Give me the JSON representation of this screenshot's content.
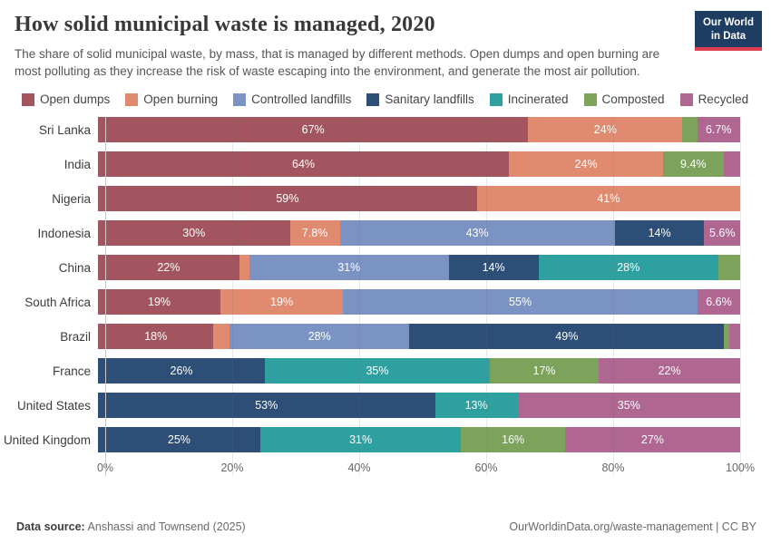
{
  "header": {
    "title": "How solid municipal waste is managed, 2020",
    "subtitle": "The share of solid municipal waste, by mass, that is managed by different methods. Open dumps and open burning are most polluting as they increase the risk of waste escaping into the environment, and generate the most air pollution.",
    "logo_line1": "Our World",
    "logo_line2": "in Data"
  },
  "brand_colors": {
    "logo_navy": "#1d3d63",
    "logo_red": "#dc3e50"
  },
  "chart_data": {
    "type": "bar",
    "stacked": true,
    "orientation": "horizontal",
    "unit": "%",
    "xlim": [
      0,
      100
    ],
    "x_ticks": [
      "0%",
      "20%",
      "40%",
      "60%",
      "80%",
      "100%"
    ],
    "grid": true,
    "legend_position": "top",
    "label_visibility_threshold": 5,
    "categories": [
      "Sri Lanka",
      "India",
      "Nigeria",
      "Indonesia",
      "China",
      "South Africa",
      "Brazil",
      "France",
      "United States",
      "United Kingdom"
    ],
    "series": [
      {
        "name": "Open dumps",
        "color": "#a2555e",
        "values": [
          67,
          64,
          59,
          30,
          22,
          19,
          18,
          0,
          0,
          0
        ]
      },
      {
        "name": "Open burning",
        "color": "#e08b70",
        "values": [
          24,
          24,
          41,
          7.8,
          1.6,
          19,
          2.5,
          0,
          0,
          0
        ]
      },
      {
        "name": "Controlled landfills",
        "color": "#7b93c2",
        "values": [
          0,
          0,
          0,
          43,
          31,
          55,
          28,
          0,
          0,
          0
        ]
      },
      {
        "name": "Sanitary landfills",
        "color": "#2d4e77",
        "values": [
          0,
          0,
          0,
          14,
          14,
          0,
          49,
          26,
          53,
          25
        ]
      },
      {
        "name": "Incinerated",
        "color": "#2fa0a0",
        "values": [
          0,
          0,
          0,
          0,
          28,
          0,
          0,
          35,
          13,
          31
        ]
      },
      {
        "name": "Composted",
        "color": "#7ca25b",
        "values": [
          2.3,
          9.4,
          0,
          0,
          3.4,
          0,
          0.8,
          17,
          0,
          16
        ]
      },
      {
        "name": "Recycled",
        "color": "#af6691",
        "values": [
          6.7,
          2.6,
          0,
          5.6,
          0,
          6.6,
          1.7,
          22,
          35,
          27
        ]
      }
    ]
  },
  "footer": {
    "source_label": "Data source:",
    "source_value": "Anshassi and Townsend (2025)",
    "credit": "OurWorldinData.org/waste-management | CC BY"
  }
}
